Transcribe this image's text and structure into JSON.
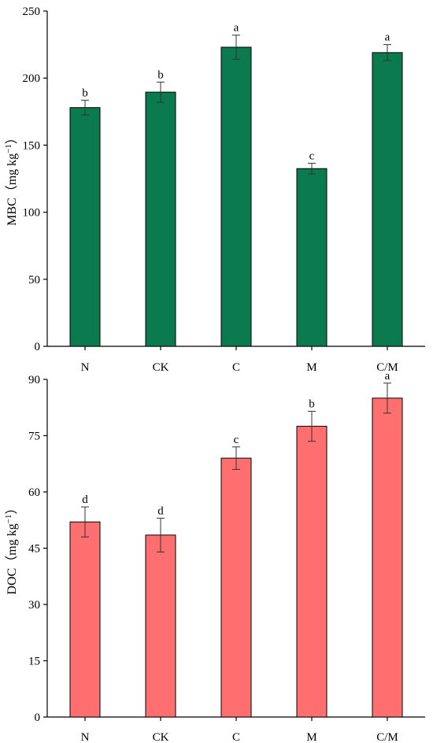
{
  "chart_data": [
    {
      "type": "bar",
      "categories": [
        "N",
        "CK",
        "C",
        "M",
        "C/M"
      ],
      "values": [
        178,
        189.5,
        223,
        132.5,
        219
      ],
      "errors": [
        5.5,
        7.5,
        9,
        4,
        6
      ],
      "significance": [
        "b",
        "b",
        "a",
        "c",
        "a"
      ],
      "ylabel_main": "MBC",
      "ylabel_unit": "（mg kg",
      "ylabel_sup": "−1",
      "ylabel_close": "）",
      "ylim": [
        0,
        250
      ],
      "yticks": [
        "0",
        "50",
        "100",
        "150",
        "200",
        "250"
      ],
      "bar_color": "#0b7a4e",
      "grid": false
    },
    {
      "type": "bar",
      "categories": [
        "N",
        "CK",
        "C",
        "M",
        "C/M"
      ],
      "values": [
        52,
        48.5,
        69,
        77.5,
        85
      ],
      "errors": [
        4,
        4.5,
        3,
        4,
        4
      ],
      "significance": [
        "d",
        "d",
        "c",
        "b",
        "a"
      ],
      "ylabel_main": "DOC",
      "ylabel_unit": "（mg kg",
      "ylabel_sup": "−1",
      "ylabel_close": "）",
      "ylim": [
        0,
        90
      ],
      "yticks": [
        "0",
        "15",
        "30",
        "45",
        "60",
        "75",
        "90"
      ],
      "bar_color": "#ff6f6f",
      "grid": false
    }
  ]
}
